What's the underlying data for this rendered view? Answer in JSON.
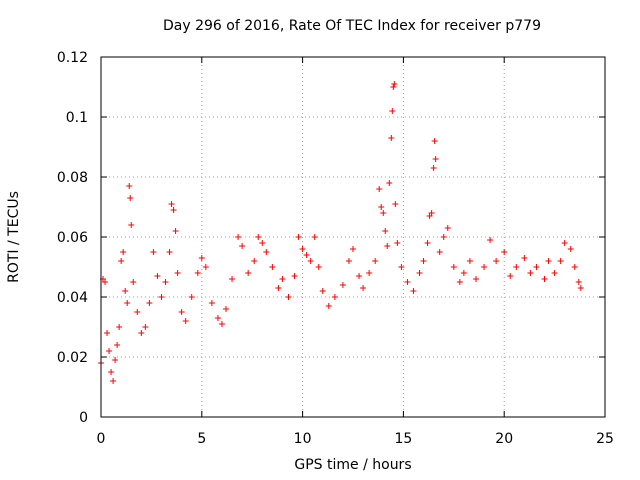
{
  "chart_data": {
    "type": "scatter",
    "title": "Day 296 of 2016, Rate Of TEC Index for receiver p779",
    "xlabel": "GPS time / hours",
    "ylabel": "ROTI / TECUs",
    "xlim": [
      0,
      25
    ],
    "ylim": [
      0,
      0.12
    ],
    "xticks": [
      0,
      5,
      10,
      15,
      20,
      25
    ],
    "xtick_labels": [
      "0",
      "5",
      "10",
      "15",
      "20",
      "25"
    ],
    "yticks": [
      0,
      0.02,
      0.04,
      0.06,
      0.08,
      0.1,
      0.12
    ],
    "ytick_labels": [
      "0",
      "0.02",
      "0.04",
      "0.06",
      "0.08",
      "0.1",
      "0.12"
    ],
    "grid": true,
    "marker": "+",
    "color": "#ff0000",
    "series": [
      {
        "name": "ROTI",
        "points": [
          [
            0.0,
            0.018
          ],
          [
            0.1,
            0.046
          ],
          [
            0.2,
            0.045
          ],
          [
            0.3,
            0.028
          ],
          [
            0.4,
            0.022
          ],
          [
            0.5,
            0.015
          ],
          [
            0.6,
            0.012
          ],
          [
            0.7,
            0.019
          ],
          [
            0.8,
            0.024
          ],
          [
            0.9,
            0.03
          ],
          [
            1.0,
            0.052
          ],
          [
            1.1,
            0.055
          ],
          [
            1.2,
            0.042
          ],
          [
            1.3,
            0.038
          ],
          [
            1.4,
            0.077
          ],
          [
            1.45,
            0.073
          ],
          [
            1.5,
            0.064
          ],
          [
            1.6,
            0.045
          ],
          [
            1.8,
            0.035
          ],
          [
            2.0,
            0.028
          ],
          [
            2.2,
            0.03
          ],
          [
            2.4,
            0.038
          ],
          [
            2.6,
            0.055
          ],
          [
            2.8,
            0.047
          ],
          [
            3.0,
            0.04
          ],
          [
            3.2,
            0.045
          ],
          [
            3.4,
            0.055
          ],
          [
            3.5,
            0.071
          ],
          [
            3.6,
            0.069
          ],
          [
            3.7,
            0.062
          ],
          [
            3.8,
            0.048
          ],
          [
            4.0,
            0.035
          ],
          [
            4.2,
            0.032
          ],
          [
            4.5,
            0.04
          ],
          [
            4.8,
            0.048
          ],
          [
            5.0,
            0.053
          ],
          [
            5.2,
            0.05
          ],
          [
            5.5,
            0.038
          ],
          [
            5.8,
            0.033
          ],
          [
            6.0,
            0.031
          ],
          [
            6.2,
            0.036
          ],
          [
            6.5,
            0.046
          ],
          [
            6.8,
            0.06
          ],
          [
            7.0,
            0.057
          ],
          [
            7.3,
            0.048
          ],
          [
            7.6,
            0.052
          ],
          [
            7.8,
            0.06
          ],
          [
            8.0,
            0.058
          ],
          [
            8.2,
            0.055
          ],
          [
            8.5,
            0.05
          ],
          [
            8.8,
            0.043
          ],
          [
            9.0,
            0.046
          ],
          [
            9.3,
            0.04
          ],
          [
            9.6,
            0.047
          ],
          [
            9.8,
            0.06
          ],
          [
            10.0,
            0.056
          ],
          [
            10.2,
            0.054
          ],
          [
            10.4,
            0.052
          ],
          [
            10.6,
            0.06
          ],
          [
            10.8,
            0.05
          ],
          [
            11.0,
            0.042
          ],
          [
            11.3,
            0.037
          ],
          [
            11.6,
            0.04
          ],
          [
            12.0,
            0.044
          ],
          [
            12.3,
            0.052
          ],
          [
            12.5,
            0.056
          ],
          [
            12.8,
            0.047
          ],
          [
            13.0,
            0.043
          ],
          [
            13.3,
            0.048
          ],
          [
            13.6,
            0.052
          ],
          [
            13.8,
            0.076
          ],
          [
            13.9,
            0.07
          ],
          [
            14.0,
            0.068
          ],
          [
            14.1,
            0.062
          ],
          [
            14.2,
            0.057
          ],
          [
            14.3,
            0.078
          ],
          [
            14.4,
            0.093
          ],
          [
            14.45,
            0.102
          ],
          [
            14.5,
            0.11
          ],
          [
            14.55,
            0.111
          ],
          [
            14.6,
            0.071
          ],
          [
            14.7,
            0.058
          ],
          [
            14.9,
            0.05
          ],
          [
            15.2,
            0.045
          ],
          [
            15.5,
            0.042
          ],
          [
            15.8,
            0.048
          ],
          [
            16.0,
            0.052
          ],
          [
            16.2,
            0.058
          ],
          [
            16.3,
            0.067
          ],
          [
            16.4,
            0.068
          ],
          [
            16.5,
            0.083
          ],
          [
            16.55,
            0.092
          ],
          [
            16.6,
            0.086
          ],
          [
            16.8,
            0.055
          ],
          [
            17.0,
            0.06
          ],
          [
            17.2,
            0.063
          ],
          [
            17.5,
            0.05
          ],
          [
            17.8,
            0.045
          ],
          [
            18.0,
            0.048
          ],
          [
            18.3,
            0.052
          ],
          [
            18.6,
            0.046
          ],
          [
            19.0,
            0.05
          ],
          [
            19.3,
            0.059
          ],
          [
            19.6,
            0.052
          ],
          [
            20.0,
            0.055
          ],
          [
            20.3,
            0.047
          ],
          [
            20.6,
            0.05
          ],
          [
            21.0,
            0.053
          ],
          [
            21.3,
            0.048
          ],
          [
            21.6,
            0.05
          ],
          [
            22.0,
            0.046
          ],
          [
            22.2,
            0.052
          ],
          [
            22.5,
            0.048
          ],
          [
            22.8,
            0.052
          ],
          [
            23.0,
            0.058
          ],
          [
            23.3,
            0.056
          ],
          [
            23.5,
            0.05
          ],
          [
            23.7,
            0.045
          ],
          [
            23.8,
            0.043
          ]
        ]
      }
    ]
  }
}
